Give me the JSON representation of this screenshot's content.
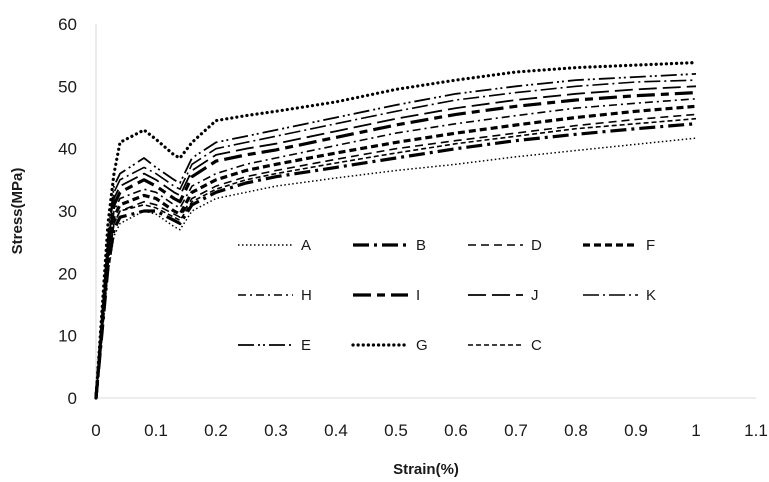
{
  "chart_data": {
    "type": "line",
    "title": "",
    "xlabel": "Strain(%)",
    "ylabel": "Stress(MPa)",
    "xlim": [
      0,
      1.1
    ],
    "ylim": [
      0,
      60
    ],
    "x_ticks": [
      "0",
      "0.1",
      "0.2",
      "0.3",
      "0.4",
      "0.5",
      "0.6",
      "0.7",
      "0.8",
      "0.9",
      "1",
      "1.1"
    ],
    "y_ticks": [
      "0",
      "10",
      "20",
      "30",
      "40",
      "50",
      "60"
    ],
    "grid": false,
    "legend_position": "center-right inside plot",
    "line_color": "#000000",
    "series": [
      {
        "name": "A",
        "dash": "dot-thin",
        "points": [
          [
            0,
            0
          ],
          [
            0.02,
            20
          ],
          [
            0.03,
            26
          ],
          [
            0.04,
            28
          ],
          [
            0.08,
            30
          ],
          [
            0.1,
            29.5
          ],
          [
            0.13,
            27.5
          ],
          [
            0.14,
            27
          ],
          [
            0.16,
            30
          ],
          [
            0.2,
            32
          ],
          [
            0.25,
            33
          ],
          [
            0.3,
            34
          ],
          [
            0.4,
            35.3
          ],
          [
            0.5,
            36.5
          ],
          [
            0.6,
            37.5
          ],
          [
            0.7,
            38.7
          ],
          [
            0.8,
            39.7
          ],
          [
            0.9,
            40.7
          ],
          [
            1,
            41.7
          ]
        ]
      },
      {
        "name": "B",
        "dash": "long-dash-dot-thick",
        "points": [
          [
            0,
            0
          ],
          [
            0.02,
            21
          ],
          [
            0.03,
            27
          ],
          [
            0.04,
            29
          ],
          [
            0.08,
            30
          ],
          [
            0.1,
            30
          ],
          [
            0.13,
            28.5
          ],
          [
            0.14,
            28
          ],
          [
            0.16,
            31
          ],
          [
            0.2,
            33
          ],
          [
            0.25,
            34.5
          ],
          [
            0.3,
            35.5
          ],
          [
            0.4,
            37
          ],
          [
            0.5,
            38.5
          ],
          [
            0.6,
            40
          ],
          [
            0.7,
            41.3
          ],
          [
            0.8,
            42.3
          ],
          [
            0.9,
            43.2
          ],
          [
            1,
            44
          ]
        ]
      },
      {
        "name": "D",
        "dash": "dash-medium",
        "points": [
          [
            0,
            0
          ],
          [
            0.02,
            22
          ],
          [
            0.03,
            28
          ],
          [
            0.04,
            30
          ],
          [
            0.08,
            31.5
          ],
          [
            0.1,
            31
          ],
          [
            0.13,
            29.5
          ],
          [
            0.14,
            29
          ],
          [
            0.16,
            32
          ],
          [
            0.2,
            34
          ],
          [
            0.25,
            35.5
          ],
          [
            0.3,
            36.5
          ],
          [
            0.4,
            38.3
          ],
          [
            0.5,
            40
          ],
          [
            0.6,
            41.3
          ],
          [
            0.7,
            42.5
          ],
          [
            0.8,
            43.7
          ],
          [
            0.9,
            44.7
          ],
          [
            1,
            45.5
          ]
        ]
      },
      {
        "name": "F",
        "dash": "dash-thick",
        "points": [
          [
            0,
            0
          ],
          [
            0.02,
            22.5
          ],
          [
            0.03,
            29
          ],
          [
            0.04,
            31
          ],
          [
            0.08,
            32.5
          ],
          [
            0.1,
            32
          ],
          [
            0.13,
            30
          ],
          [
            0.14,
            29.5
          ],
          [
            0.16,
            33
          ],
          [
            0.2,
            35
          ],
          [
            0.25,
            36.5
          ],
          [
            0.3,
            37.5
          ],
          [
            0.4,
            39.3
          ],
          [
            0.5,
            41
          ],
          [
            0.6,
            42.5
          ],
          [
            0.7,
            43.8
          ],
          [
            0.8,
            45
          ],
          [
            0.9,
            46
          ],
          [
            1,
            46.8
          ]
        ]
      },
      {
        "name": "H",
        "dash": "dash-dot",
        "points": [
          [
            0,
            0
          ],
          [
            0.02,
            23
          ],
          [
            0.03,
            30
          ],
          [
            0.04,
            32
          ],
          [
            0.08,
            33.5
          ],
          [
            0.1,
            33
          ],
          [
            0.13,
            31
          ],
          [
            0.14,
            30.5
          ],
          [
            0.16,
            34
          ],
          [
            0.2,
            36
          ],
          [
            0.25,
            37.5
          ],
          [
            0.3,
            38.5
          ],
          [
            0.4,
            40.5
          ],
          [
            0.5,
            42.5
          ],
          [
            0.6,
            44
          ],
          [
            0.7,
            45.3
          ],
          [
            0.8,
            46.5
          ],
          [
            0.9,
            47.3
          ],
          [
            1,
            48
          ]
        ]
      },
      {
        "name": "I",
        "dash": "long-dash-short-dash-thick",
        "points": [
          [
            0,
            0
          ],
          [
            0.02,
            24
          ],
          [
            0.03,
            31
          ],
          [
            0.04,
            33
          ],
          [
            0.08,
            35
          ],
          [
            0.1,
            34
          ],
          [
            0.13,
            32
          ],
          [
            0.14,
            31.5
          ],
          [
            0.16,
            35.5
          ],
          [
            0.2,
            38
          ],
          [
            0.25,
            39
          ],
          [
            0.3,
            39.8
          ],
          [
            0.4,
            41.8
          ],
          [
            0.5,
            43.8
          ],
          [
            0.6,
            45.5
          ],
          [
            0.7,
            46.8
          ],
          [
            0.8,
            47.8
          ],
          [
            0.9,
            48.5
          ],
          [
            1,
            49
          ]
        ]
      },
      {
        "name": "J",
        "dash": "long-dash",
        "points": [
          [
            0,
            0
          ],
          [
            0.02,
            24.5
          ],
          [
            0.03,
            32
          ],
          [
            0.04,
            34
          ],
          [
            0.08,
            36
          ],
          [
            0.1,
            35
          ],
          [
            0.13,
            33
          ],
          [
            0.14,
            32.5
          ],
          [
            0.16,
            36.5
          ],
          [
            0.2,
            39
          ],
          [
            0.25,
            40
          ],
          [
            0.3,
            40.8
          ],
          [
            0.4,
            42.8
          ],
          [
            0.5,
            44.8
          ],
          [
            0.6,
            46.5
          ],
          [
            0.7,
            47.8
          ],
          [
            0.8,
            48.8
          ],
          [
            0.9,
            49.5
          ],
          [
            1,
            50
          ]
        ]
      },
      {
        "name": "K",
        "dash": "long-dash-dot",
        "points": [
          [
            0,
            0
          ],
          [
            0.02,
            25
          ],
          [
            0.03,
            33
          ],
          [
            0.04,
            35
          ],
          [
            0.08,
            37
          ],
          [
            0.1,
            36
          ],
          [
            0.13,
            34
          ],
          [
            0.14,
            33.5
          ],
          [
            0.16,
            37.5
          ],
          [
            0.2,
            40
          ],
          [
            0.25,
            41
          ],
          [
            0.3,
            42
          ],
          [
            0.4,
            44
          ],
          [
            0.5,
            46
          ],
          [
            0.6,
            47.8
          ],
          [
            0.7,
            49
          ],
          [
            0.8,
            50
          ],
          [
            0.9,
            50.7
          ],
          [
            1,
            51
          ]
        ]
      },
      {
        "name": "E",
        "dash": "long-dash-dot-dot",
        "points": [
          [
            0,
            0
          ],
          [
            0.02,
            26
          ],
          [
            0.03,
            34
          ],
          [
            0.04,
            36
          ],
          [
            0.08,
            38.5
          ],
          [
            0.1,
            37
          ],
          [
            0.13,
            35
          ],
          [
            0.14,
            34.5
          ],
          [
            0.16,
            38.5
          ],
          [
            0.2,
            41
          ],
          [
            0.25,
            42
          ],
          [
            0.3,
            43
          ],
          [
            0.4,
            45
          ],
          [
            0.5,
            47
          ],
          [
            0.6,
            48.8
          ],
          [
            0.7,
            50
          ],
          [
            0.8,
            51
          ],
          [
            0.9,
            51.5
          ],
          [
            1,
            52
          ]
        ]
      },
      {
        "name": "G",
        "dash": "dot-thick",
        "points": [
          [
            0,
            0
          ],
          [
            0.02,
            28
          ],
          [
            0.03,
            36
          ],
          [
            0.04,
            41
          ],
          [
            0.08,
            43
          ],
          [
            0.1,
            41.5
          ],
          [
            0.13,
            39
          ],
          [
            0.14,
            38.5
          ],
          [
            0.16,
            41
          ],
          [
            0.2,
            44.5
          ],
          [
            0.25,
            45.3
          ],
          [
            0.3,
            46
          ],
          [
            0.4,
            47.5
          ],
          [
            0.5,
            49.5
          ],
          [
            0.6,
            51
          ],
          [
            0.7,
            52.3
          ],
          [
            0.8,
            53
          ],
          [
            0.9,
            53.4
          ],
          [
            1,
            53.8
          ]
        ]
      },
      {
        "name": "C",
        "dash": "dash-short",
        "points": [
          [
            0,
            0
          ],
          [
            0.02,
            21
          ],
          [
            0.03,
            28
          ],
          [
            0.04,
            30
          ],
          [
            0.08,
            31
          ],
          [
            0.1,
            30.5
          ],
          [
            0.13,
            29
          ],
          [
            0.14,
            28.5
          ],
          [
            0.16,
            31.5
          ],
          [
            0.2,
            33.5
          ],
          [
            0.25,
            35
          ],
          [
            0.3,
            36
          ],
          [
            0.4,
            37.7
          ],
          [
            0.5,
            39.3
          ],
          [
            0.6,
            40.8
          ],
          [
            0.7,
            42
          ],
          [
            0.8,
            43.2
          ],
          [
            0.9,
            44
          ],
          [
            1,
            44.8
          ]
        ]
      }
    ]
  }
}
